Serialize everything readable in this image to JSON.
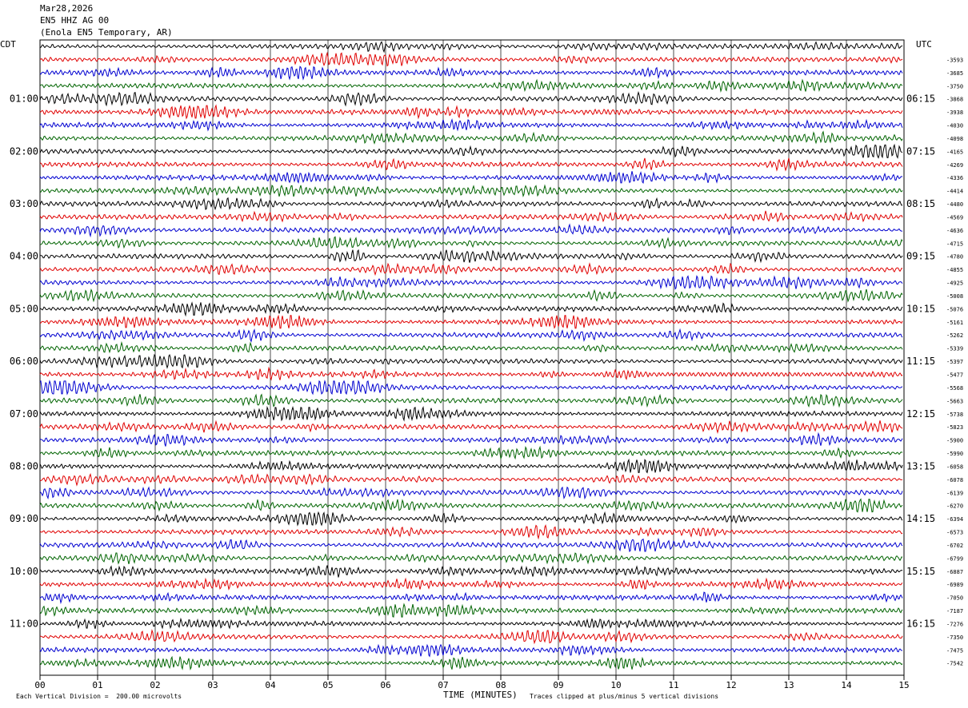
{
  "header": {
    "date": "Mar28,2026",
    "station": "EN5 HHZ AG 00",
    "location": "(Enola EN5 Temporary, AR)"
  },
  "left_tz": "CDT",
  "right_tz": "UTC",
  "footer": {
    "scale_note": "Each Vertical Division =  200.00 microvolts",
    "xlabel": "TIME (MINUTES)",
    "clip_note": "Traces clipped at plus/minus 5 vertical divisions"
  },
  "chart_data": {
    "type": "line",
    "title": "",
    "xlabel": "TIME (MINUTES)",
    "ylabel": "",
    "xlim": [
      0,
      15
    ],
    "x_ticks": [
      "00",
      "01",
      "02",
      "03",
      "04",
      "05",
      "06",
      "07",
      "08",
      "09",
      "10",
      "11",
      "12",
      "13",
      "14",
      "15"
    ],
    "trace_count": 48,
    "trace_colors": [
      "#000000",
      "#e00000",
      "#0000d0",
      "#006400"
    ],
    "grid": "vertical lines at each minute",
    "left_labels": [
      "01:00",
      "02:00",
      "03:00",
      "04:00",
      "05:00",
      "06:00",
      "07:00",
      "08:00",
      "09:00",
      "10:00",
      "11:00"
    ],
    "right_labels": [
      "06:15",
      "07:15",
      "08:15",
      "09:15",
      "10:15",
      "11:15",
      "12:15",
      "13:15",
      "14:15",
      "15:15",
      "16:15"
    ],
    "right_values": [
      "-3593",
      "-3685",
      "-3750",
      "-3868",
      "-3938",
      "-4030",
      "-4098",
      "-4165",
      "-4269",
      "-4336",
      "-4414",
      "-4480",
      "-4569",
      "-4636",
      "-4715",
      "-4780",
      "-4855",
      "-4925",
      "-5008",
      "-5076",
      "-5161",
      "-5262",
      "-5339",
      "-5397",
      "-5477",
      "-5568",
      "-5663",
      "-5738",
      "-5823",
      "-5900",
      "-5990",
      "-6058",
      "-6078",
      "-6139",
      "-6270",
      "-6394",
      "-6573",
      "-6702",
      "-6799",
      "-6887",
      "-6989",
      "-7050",
      "-7187",
      "-7276",
      "-7350",
      "-7475",
      "-7542"
    ]
  }
}
